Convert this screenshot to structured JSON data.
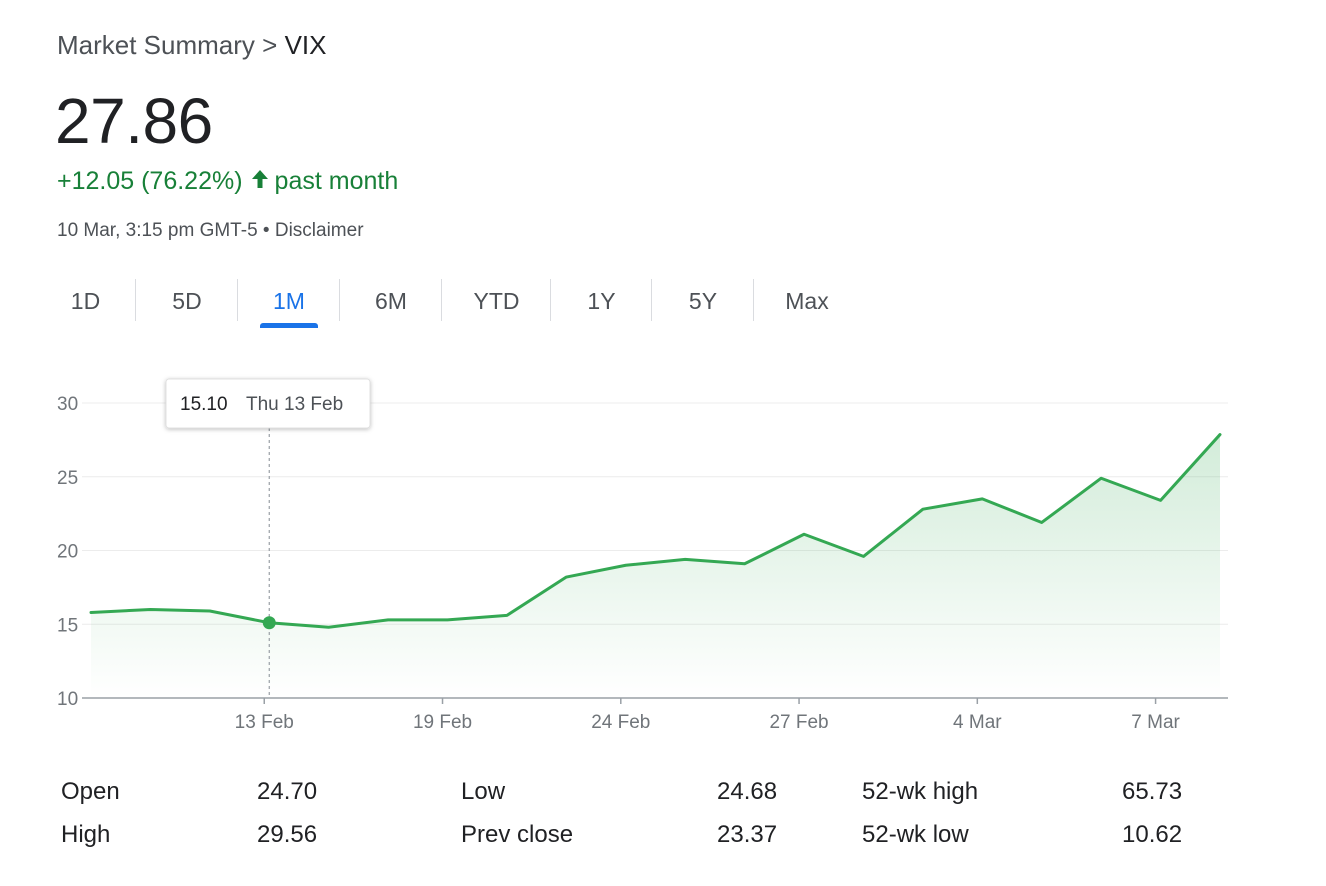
{
  "breadcrumb": {
    "parent": "Market Summary",
    "separator": ">",
    "current": "VIX"
  },
  "price": "27.86",
  "change": {
    "value": "+12.05 (76.22%)",
    "period": "past month",
    "color": "#188038"
  },
  "meta": {
    "timestamp": "10 Mar, 3:15 pm GMT-5",
    "separator": "•",
    "disclaimer": "Disclaimer"
  },
  "tabs": [
    {
      "label": "1D"
    },
    {
      "label": "5D"
    },
    {
      "label": "1M",
      "active": true
    },
    {
      "label": "6M"
    },
    {
      "label": "YTD"
    },
    {
      "label": "1Y"
    },
    {
      "label": "5Y"
    },
    {
      "label": "Max"
    }
  ],
  "tooltip": {
    "value": "15.10",
    "date": "Thu 13 Feb"
  },
  "colors": {
    "accent": "#1a73e8",
    "line": "#34a853",
    "text": "#202124",
    "muted": "#4d5156"
  },
  "stats": [
    [
      {
        "label": "Open",
        "value": "24.70"
      },
      {
        "label": "Low",
        "value": "24.68"
      },
      {
        "label": "52-wk high",
        "value": "65.73"
      }
    ],
    [
      {
        "label": "High",
        "value": "29.56"
      },
      {
        "label": "Prev close",
        "value": "23.37"
      },
      {
        "label": "52-wk low",
        "value": "10.62"
      }
    ]
  ],
  "chart_data": {
    "type": "area",
    "ylim": [
      10,
      30
    ],
    "yticks": [
      "30",
      "25",
      "20",
      "15",
      "10"
    ],
    "xtick_labels": [
      "13 Feb",
      "19 Feb",
      "24 Feb",
      "27 Feb",
      "4 Mar",
      "7 Mar"
    ],
    "xtick_index": [
      3,
      6,
      9,
      12,
      15,
      18
    ],
    "series": [
      {
        "values": [
          15.8,
          16.0,
          15.9,
          15.1,
          14.8,
          15.3,
          15.3,
          15.6,
          18.2,
          19.0,
          19.4,
          19.1,
          21.1,
          19.6,
          22.8,
          23.5,
          21.9,
          24.9,
          23.4,
          27.86
        ]
      }
    ],
    "highlight_index": 3,
    "grid": true
  }
}
